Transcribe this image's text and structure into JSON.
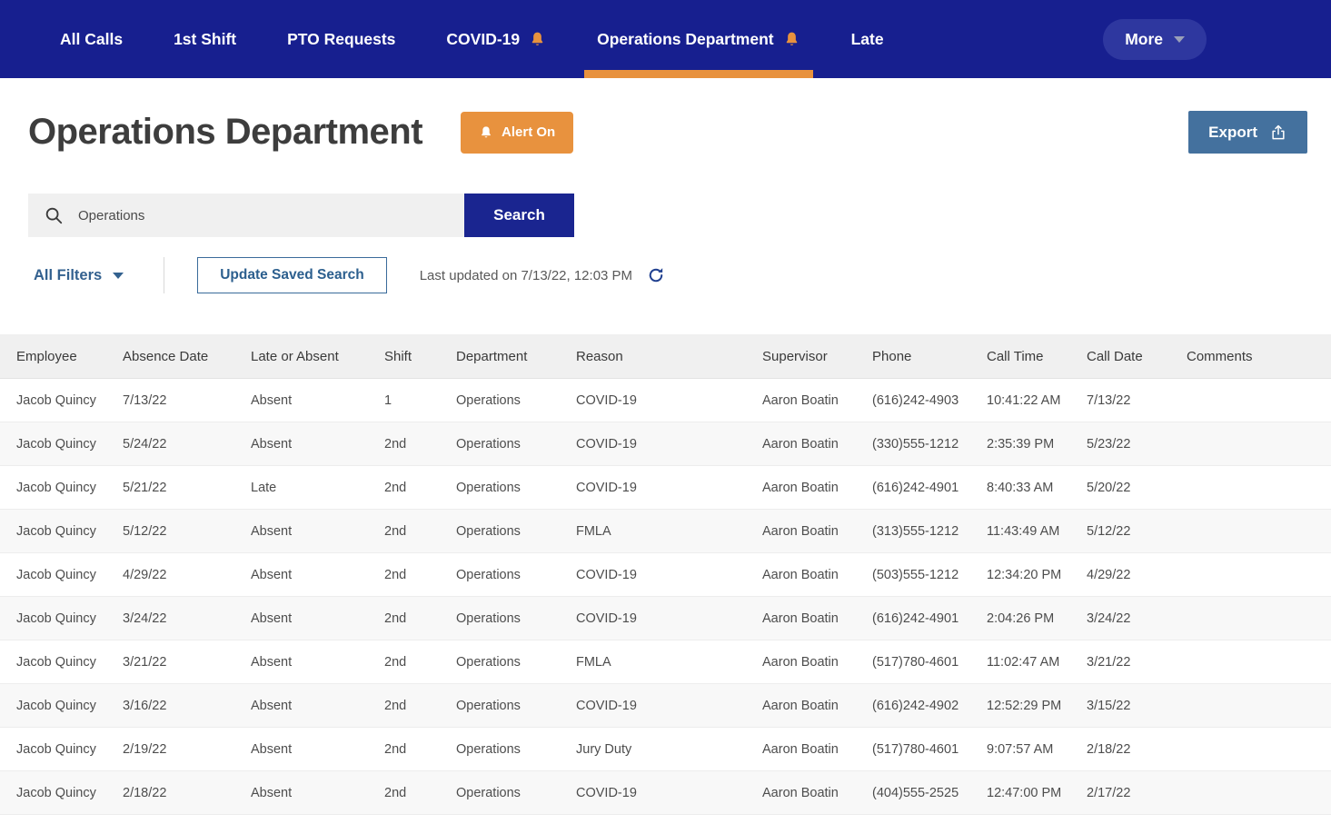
{
  "nav": {
    "tabs": [
      {
        "label": "All Calls",
        "bell": false,
        "active": false
      },
      {
        "label": "1st Shift",
        "bell": false,
        "active": false
      },
      {
        "label": "PTO Requests",
        "bell": false,
        "active": false
      },
      {
        "label": "COVID-19",
        "bell": true,
        "active": false
      },
      {
        "label": "Operations Department",
        "bell": true,
        "active": true
      },
      {
        "label": "Late",
        "bell": false,
        "active": false
      }
    ],
    "more_label": "More"
  },
  "header": {
    "title": "Operations Department",
    "alert_button": "Alert On",
    "export_button": "Export"
  },
  "search": {
    "value": "Operations",
    "button": "Search"
  },
  "filters": {
    "all_filters": "All Filters",
    "update_saved_search": "Update Saved Search",
    "last_updated": "Last updated on 7/13/22, 12:03 PM"
  },
  "table": {
    "columns": [
      "Employee",
      "Absence Date",
      "Late or Absent",
      "Shift",
      "Department",
      "Reason",
      "Supervisor",
      "Phone",
      "Call Time",
      "Call Date",
      "Comments"
    ],
    "rows": [
      [
        "Jacob Quincy",
        "7/13/22",
        "Absent",
        "1",
        "Operations",
        "COVID-19",
        "Aaron Boatin",
        "(616)242-4903",
        "10:41:22 AM",
        "7/13/22",
        ""
      ],
      [
        "Jacob Quincy",
        "5/24/22",
        "Absent",
        "2nd",
        "Operations",
        "COVID-19",
        "Aaron Boatin",
        "(330)555-1212",
        "2:35:39 PM",
        "5/23/22",
        ""
      ],
      [
        "Jacob Quincy",
        "5/21/22",
        "Late",
        "2nd",
        "Operations",
        "COVID-19",
        "Aaron Boatin",
        "(616)242-4901",
        "8:40:33 AM",
        "5/20/22",
        ""
      ],
      [
        "Jacob Quincy",
        "5/12/22",
        "Absent",
        "2nd",
        "Operations",
        "FMLA",
        "Aaron Boatin",
        "(313)555-1212",
        "11:43:49 AM",
        "5/12/22",
        ""
      ],
      [
        "Jacob Quincy",
        "4/29/22",
        "Absent",
        "2nd",
        "Operations",
        "COVID-19",
        "Aaron Boatin",
        "(503)555-1212",
        "12:34:20 PM",
        "4/29/22",
        ""
      ],
      [
        "Jacob Quincy",
        "3/24/22",
        "Absent",
        "2nd",
        "Operations",
        "COVID-19",
        "Aaron Boatin",
        "(616)242-4901",
        "2:04:26 PM",
        "3/24/22",
        ""
      ],
      [
        "Jacob Quincy",
        "3/21/22",
        "Absent",
        "2nd",
        "Operations",
        "FMLA",
        "Aaron Boatin",
        "(517)780-4601",
        "11:02:47 AM",
        "3/21/22",
        ""
      ],
      [
        "Jacob Quincy",
        "3/16/22",
        "Absent",
        "2nd",
        "Operations",
        "COVID-19",
        "Aaron Boatin",
        "(616)242-4902",
        "12:52:29 PM",
        "3/15/22",
        ""
      ],
      [
        "Jacob Quincy",
        "2/19/22",
        "Absent",
        "2nd",
        "Operations",
        "Jury Duty",
        "Aaron Boatin",
        "(517)780-4601",
        "9:07:57 AM",
        "2/18/22",
        ""
      ],
      [
        "Jacob Quincy",
        "2/18/22",
        "Absent",
        "2nd",
        "Operations",
        "COVID-19",
        "Aaron Boatin",
        "(404)555-2525",
        "12:47:00 PM",
        "2/17/22",
        ""
      ]
    ]
  },
  "colors": {
    "nav_background": "#171f8f",
    "accent_orange": "#e8923e",
    "export_blue": "#44719e",
    "search_button_navy": "#1a2590",
    "filter_steel_blue": "#33618f",
    "header_row_grey": "#f0f0f0",
    "zebra_row_grey": "#f8f8f8",
    "title_grey": "#3d3d3d"
  }
}
